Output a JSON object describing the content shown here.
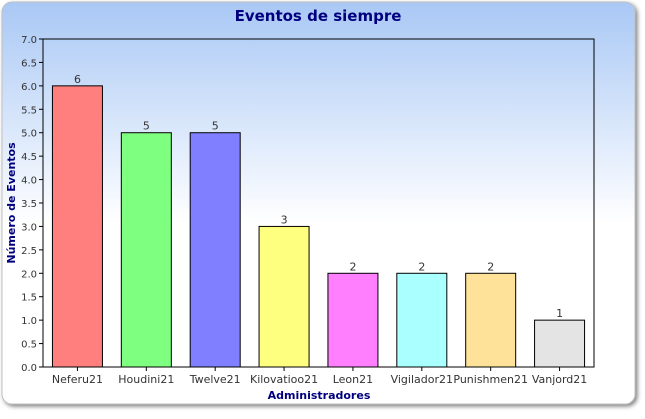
{
  "chart_data": {
    "type": "bar",
    "title": "Eventos de siempre",
    "xlabel": "Administradores",
    "ylabel": "Número de Eventos",
    "categories": [
      "Neferu21",
      "Houdini21",
      "Twelve21",
      "Kilovatioo21",
      "Leon21",
      "Vigilador21",
      "Punishmen21",
      "Vanjord21"
    ],
    "values": [
      6,
      5,
      5,
      3,
      2,
      2,
      2,
      1
    ],
    "data_labels": [
      "6",
      "5",
      "5",
      "3",
      "2",
      "2",
      "2",
      "1"
    ],
    "ylim": [
      0,
      7
    ],
    "yticks": [
      "0.0",
      "0.5",
      "1.0",
      "1.5",
      "2.0",
      "2.5",
      "3.0",
      "3.5",
      "4.0",
      "4.5",
      "5.0",
      "5.5",
      "6.0",
      "6.5",
      "7.0"
    ],
    "bar_colors": [
      "#ff7f7f",
      "#7fff7f",
      "#7f7fff",
      "#ffff7f",
      "#ff7fff",
      "#aaffff",
      "#ffe29a",
      "#e4e4e4"
    ],
    "grid": false,
    "legend": "none"
  },
  "colors": {
    "background_top": "#a9c8f5",
    "background_bottom": "#ffffff",
    "title": "#00007f",
    "axis_label": "#00007f",
    "axis_line": "#000000",
    "text": "#333333"
  }
}
